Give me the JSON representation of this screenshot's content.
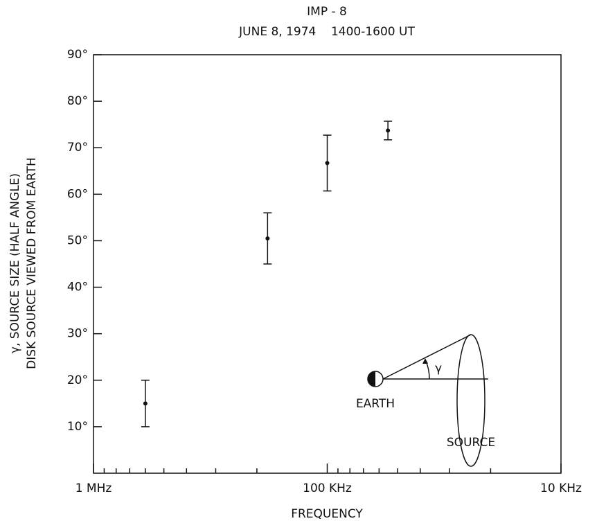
{
  "chart_data": {
    "type": "scatter",
    "title": "IMP - 8",
    "subtitle": "JUNE 8, 1974    1400-1600 UT",
    "xlabel": "FREQUENCY",
    "ylabel": [
      "γ, SOURCE SIZE (HALF ANGLE)",
      "DISK SOURCE VIEWED FROM EARTH"
    ],
    "xscale": "log",
    "xlim": [
      1000,
      10
    ],
    "xticks": [
      {
        "value": 1000,
        "label": "1 MHz"
      },
      {
        "value": 100,
        "label": "100 KHz"
      },
      {
        "value": 10,
        "label": "10 KHz"
      }
    ],
    "xminorticks": [
      900,
      800,
      700,
      600,
      500,
      400,
      300,
      200,
      90,
      80,
      70,
      60,
      50,
      40,
      30,
      20
    ],
    "ylim": [
      0,
      90
    ],
    "yticks": [
      {
        "value": 10,
        "label": "10°"
      },
      {
        "value": 20,
        "label": "20°"
      },
      {
        "value": 30,
        "label": "30°"
      },
      {
        "value": 40,
        "label": "40°"
      },
      {
        "value": 50,
        "label": "50°"
      },
      {
        "value": 60,
        "label": "60°"
      },
      {
        "value": 70,
        "label": "70°"
      },
      {
        "value": 80,
        "label": "80°"
      },
      {
        "value": 90,
        "label": "90°"
      }
    ],
    "x": [
      600,
      180,
      100,
      55
    ],
    "values": [
      15,
      50.5,
      66.7,
      73.7
    ],
    "errors": [
      5,
      5.5,
      6,
      2
    ],
    "color": "#111111",
    "annotations": {
      "earth": "EARTH",
      "source": "SOURCE",
      "angle": "γ"
    }
  }
}
